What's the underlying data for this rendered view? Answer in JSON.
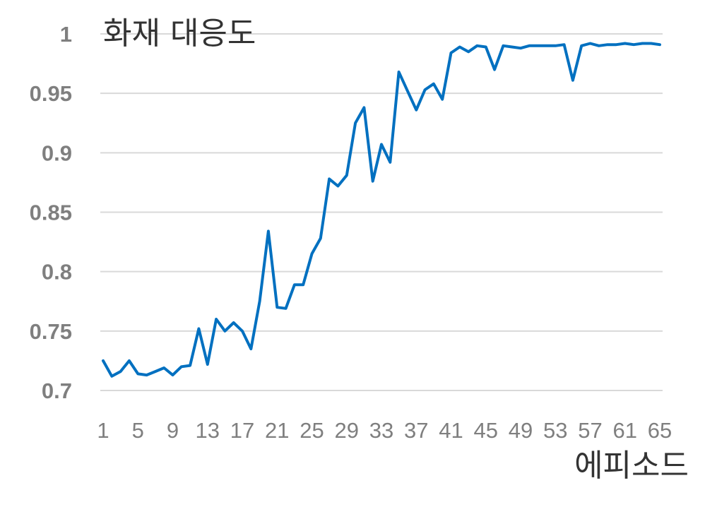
{
  "chart_data": {
    "type": "line",
    "title": "화재 대응도",
    "xlabel": "에피소드",
    "ylabel": "",
    "grid": true,
    "ylim": [
      0.7,
      1.0
    ],
    "y_ticks": [
      "0.7",
      "0.75",
      "0.8",
      "0.85",
      "0.9",
      "0.95",
      "1"
    ],
    "x_ticks": [
      "1",
      "5",
      "9",
      "13",
      "17",
      "21",
      "25",
      "29",
      "33",
      "37",
      "41",
      "45",
      "49",
      "53",
      "57",
      "61",
      "65"
    ],
    "x": [
      1,
      2,
      3,
      4,
      5,
      6,
      7,
      8,
      9,
      10,
      11,
      12,
      13,
      14,
      15,
      16,
      17,
      18,
      19,
      20,
      21,
      22,
      23,
      24,
      25,
      26,
      27,
      28,
      29,
      30,
      31,
      32,
      33,
      34,
      35,
      36,
      37,
      38,
      39,
      40,
      41,
      42,
      43,
      44,
      45,
      46,
      47,
      48,
      49,
      50,
      51,
      52,
      53,
      54,
      55,
      56,
      57,
      58,
      59,
      60,
      61,
      62,
      63,
      64,
      65
    ],
    "series": [
      {
        "color": "#0070c0",
        "values": [
          0.725,
          0.712,
          0.716,
          0.725,
          0.714,
          0.713,
          0.716,
          0.719,
          0.713,
          0.72,
          0.721,
          0.752,
          0.722,
          0.76,
          0.75,
          0.757,
          0.75,
          0.735,
          0.775,
          0.834,
          0.77,
          0.769,
          0.789,
          0.789,
          0.815,
          0.828,
          0.878,
          0.872,
          0.881,
          0.925,
          0.938,
          0.876,
          0.907,
          0.892,
          0.968,
          0.952,
          0.936,
          0.953,
          0.958,
          0.945,
          0.984,
          0.989,
          0.985,
          0.99,
          0.989,
          0.97,
          0.99,
          0.989,
          0.988,
          0.99,
          0.99,
          0.99,
          0.99,
          0.991,
          0.961,
          0.99,
          0.992,
          0.99,
          0.991,
          0.991,
          0.992,
          0.991,
          0.992,
          0.992,
          0.991
        ]
      }
    ]
  }
}
